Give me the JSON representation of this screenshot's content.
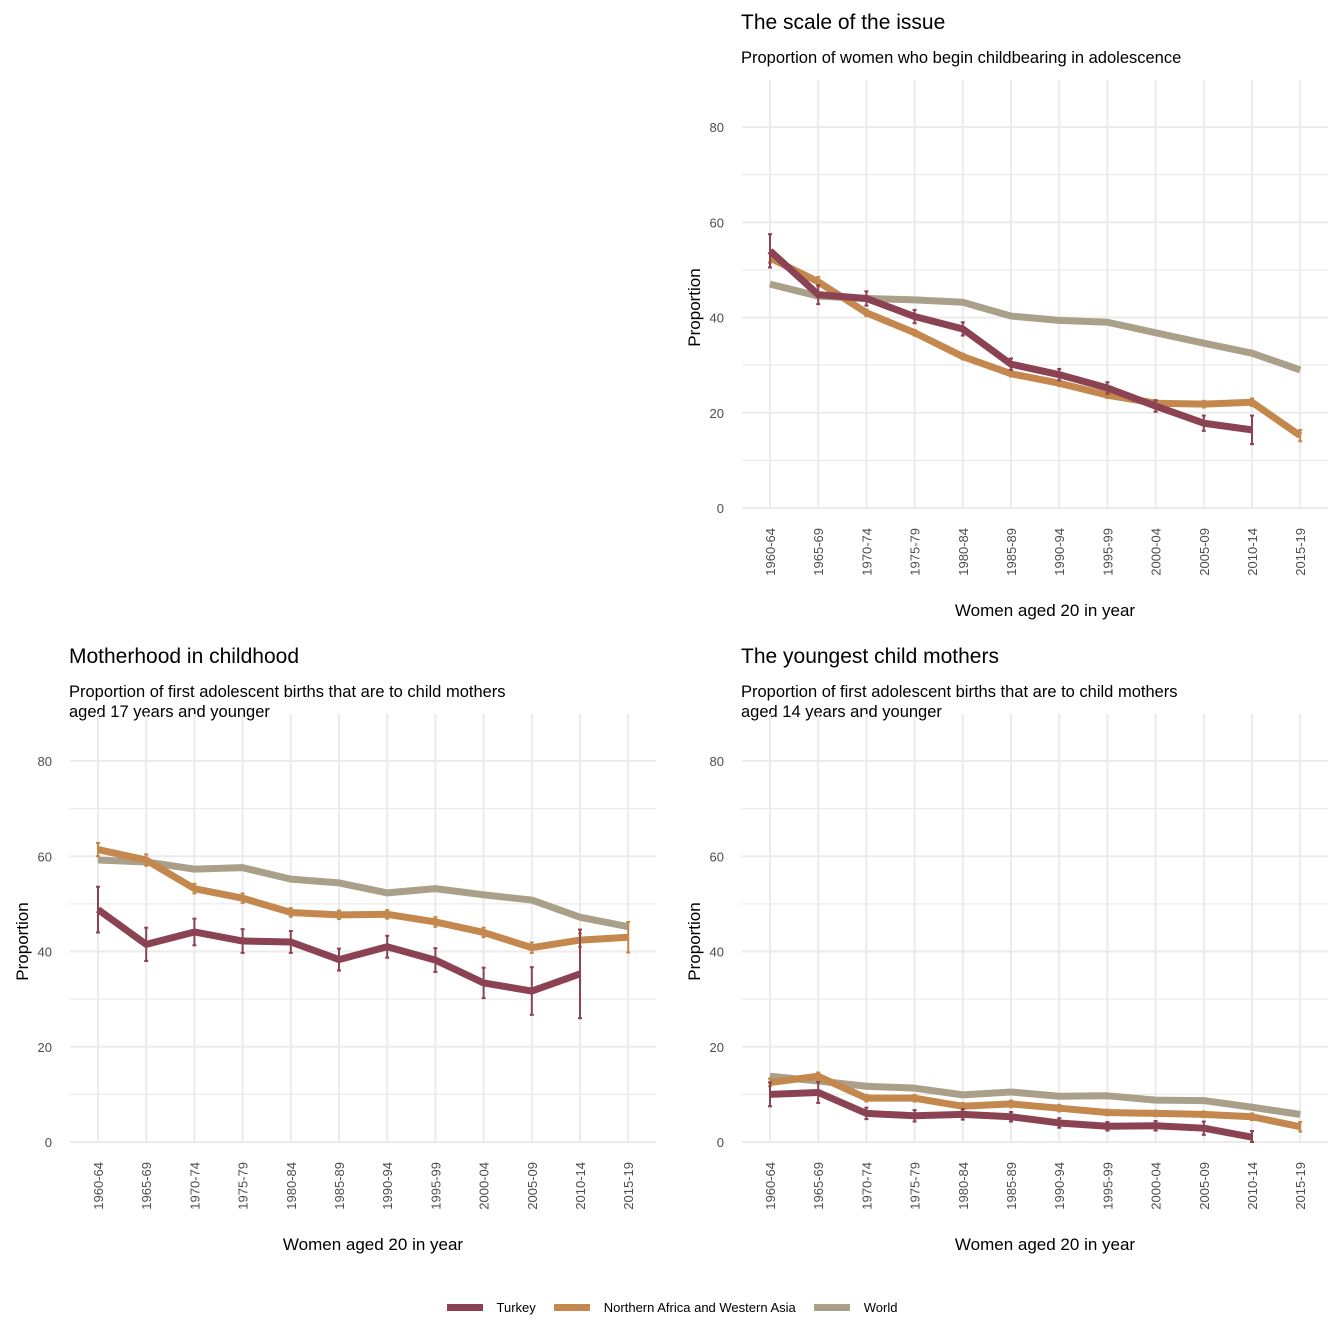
{
  "legend": [
    {
      "name": "Turkey",
      "color": "#8B4353"
    },
    {
      "name": "Northern Africa and Western Asia",
      "color": "#C4884E"
    },
    {
      "name": "World",
      "color": "#AAA08A"
    }
  ],
  "chart_data": [
    {
      "id": "scale",
      "type": "line",
      "title": "The scale of the issue",
      "subtitle": "Proportion of women who begin childbearing in adolescence",
      "xlabel": "Women aged 20 in year",
      "ylabel": "Proportion",
      "ylim": [
        0,
        80
      ],
      "yticks": [
        0,
        20,
        40,
        60,
        80
      ],
      "categories": [
        "1960-64",
        "1965-69",
        "1970-74",
        "1975-79",
        "1980-84",
        "1985-89",
        "1990-94",
        "1995-99",
        "2000-04",
        "2005-09",
        "2010-14",
        "2015-19"
      ],
      "series": [
        {
          "name": "World",
          "values": [
            47.0,
            44.5,
            44.0,
            43.7,
            43.2,
            40.3,
            39.4,
            39.0,
            36.8,
            34.6,
            32.5,
            29.0
          ]
        },
        {
          "name": "Northern Africa and Western Asia",
          "values": [
            52.5,
            47.5,
            41.0,
            36.8,
            31.8,
            28.2,
            26.2,
            23.7,
            22.0,
            21.8,
            22.2,
            15.2
          ],
          "error": [
            [
              51.5,
              53.5
            ],
            [
              46.5,
              48.5
            ],
            [
              40.3,
              41.7
            ],
            [
              36.2,
              37.4
            ],
            [
              31.2,
              32.4
            ],
            [
              27.6,
              28.8
            ],
            [
              25.6,
              26.8
            ],
            [
              23.1,
              24.3
            ],
            [
              21.3,
              22.7
            ],
            [
              21.1,
              22.5
            ],
            [
              21.4,
              23.0
            ],
            [
              14.0,
              16.4
            ]
          ]
        },
        {
          "name": "Turkey",
          "values": [
            54.0,
            44.8,
            44.0,
            40.2,
            37.6,
            30.2,
            28.0,
            25.2,
            21.4,
            17.8,
            16.4,
            null
          ],
          "error": [
            [
              50.5,
              57.5
            ],
            [
              42.8,
              46.8
            ],
            [
              42.5,
              45.5
            ],
            [
              38.8,
              41.6
            ],
            [
              36.2,
              39.0
            ],
            [
              29.0,
              31.4
            ],
            [
              26.8,
              29.2
            ],
            [
              24.0,
              26.4
            ],
            [
              20.2,
              22.6
            ],
            [
              16.2,
              19.4
            ],
            [
              13.4,
              19.4
            ],
            null
          ]
        }
      ]
    },
    {
      "id": "childhood",
      "type": "line",
      "title": "Motherhood in childhood",
      "subtitle": "Proportion of first adolescent births that are to child mothers\naged 17 years and younger",
      "xlabel": "Women aged 20 in year",
      "ylabel": "Proportion",
      "ylim": [
        0,
        80
      ],
      "yticks": [
        0,
        20,
        40,
        60,
        80
      ],
      "categories": [
        "1960-64",
        "1965-69",
        "1970-74",
        "1975-79",
        "1980-84",
        "1985-89",
        "1990-94",
        "1995-99",
        "2000-04",
        "2005-09",
        "2010-14",
        "2015-19"
      ],
      "series": [
        {
          "name": "World",
          "values": [
            59.2,
            58.8,
            57.3,
            57.6,
            55.2,
            54.4,
            52.3,
            53.2,
            51.9,
            50.8,
            47.2,
            45.2
          ]
        },
        {
          "name": "Northern Africa and Western Asia",
          "values": [
            61.4,
            59.2,
            53.2,
            51.2,
            48.2,
            47.7,
            47.8,
            46.2,
            44.0,
            40.8,
            42.4,
            43.0
          ],
          "error": [
            [
              60.0,
              62.8
            ],
            [
              58.0,
              60.4
            ],
            [
              52.2,
              54.2
            ],
            [
              50.2,
              52.2
            ],
            [
              47.3,
              49.1
            ],
            [
              46.8,
              48.6
            ],
            [
              46.9,
              48.7
            ],
            [
              45.2,
              47.2
            ],
            [
              43.0,
              45.0
            ],
            [
              39.7,
              41.9
            ],
            [
              41.0,
              43.8
            ],
            [
              39.8,
              46.2
            ]
          ]
        },
        {
          "name": "Turkey",
          "values": [
            48.8,
            41.5,
            44.1,
            42.2,
            42.0,
            38.3,
            41.0,
            38.2,
            33.4,
            31.7,
            35.3,
            null
          ],
          "error": [
            [
              44.0,
              53.6
            ],
            [
              38.0,
              45.0
            ],
            [
              41.3,
              46.9
            ],
            [
              39.7,
              44.7
            ],
            [
              39.7,
              44.3
            ],
            [
              36.0,
              40.6
            ],
            [
              38.7,
              43.3
            ],
            [
              35.7,
              40.7
            ],
            [
              30.2,
              36.6
            ],
            [
              26.7,
              36.7
            ],
            [
              26.0,
              44.6
            ],
            null
          ]
        }
      ]
    },
    {
      "id": "youngest",
      "type": "line",
      "title": "The youngest child mothers",
      "subtitle": "Proportion of first adolescent births that are to child mothers\naged 14 years and younger",
      "xlabel": "Women aged 20 in year",
      "ylabel": "Proportion",
      "ylim": [
        0,
        80
      ],
      "yticks": [
        0,
        20,
        40,
        60,
        80
      ],
      "categories": [
        "1960-64",
        "1965-69",
        "1970-74",
        "1975-79",
        "1980-84",
        "1985-89",
        "1990-94",
        "1995-99",
        "2000-04",
        "2005-09",
        "2010-14",
        "2015-19"
      ],
      "series": [
        {
          "name": "World",
          "values": [
            13.8,
            12.8,
            11.7,
            11.3,
            9.9,
            10.5,
            9.6,
            9.7,
            8.8,
            8.7,
            7.3,
            5.8
          ]
        },
        {
          "name": "Northern Africa and Western Asia",
          "values": [
            12.5,
            13.8,
            9.2,
            9.2,
            7.5,
            8.0,
            7.1,
            6.2,
            6.0,
            5.8,
            5.3,
            3.2
          ],
          "error": [
            [
              11.7,
              13.3
            ],
            [
              13.0,
              14.6
            ],
            [
              8.5,
              9.9
            ],
            [
              8.5,
              9.9
            ],
            [
              6.8,
              8.2
            ],
            [
              7.3,
              8.7
            ],
            [
              6.4,
              7.8
            ],
            [
              5.6,
              6.8
            ],
            [
              5.4,
              6.6
            ],
            [
              5.2,
              6.4
            ],
            [
              4.6,
              6.0
            ],
            [
              2.2,
              4.2
            ]
          ]
        },
        {
          "name": "Turkey",
          "values": [
            10.0,
            10.4,
            6.0,
            5.5,
            5.8,
            5.3,
            4.0,
            3.3,
            3.4,
            2.9,
            1.0,
            null
          ],
          "error": [
            [
              7.5,
              12.5
            ],
            [
              8.2,
              12.6
            ],
            [
              4.8,
              7.2
            ],
            [
              4.3,
              6.7
            ],
            [
              4.7,
              6.9
            ],
            [
              4.3,
              6.3
            ],
            [
              3.0,
              5.0
            ],
            [
              2.4,
              4.2
            ],
            [
              2.4,
              4.4
            ],
            [
              1.5,
              4.3
            ],
            [
              0.0,
              2.3
            ],
            null
          ]
        }
      ]
    }
  ]
}
